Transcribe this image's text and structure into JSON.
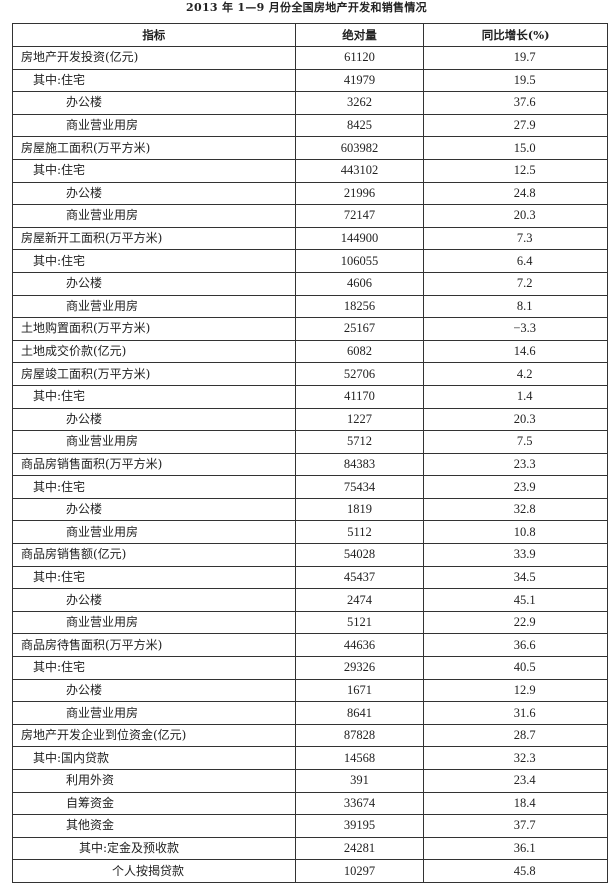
{
  "title": "2013 年 1—9 月份全国房地产开发和销售情况",
  "headers": [
    "指标",
    "绝对量",
    "同比增长(%)"
  ],
  "rows": [
    {
      "label": "房地产开发投资(亿元)",
      "level": 0,
      "value": "61120",
      "growth": "19.7"
    },
    {
      "label": "其中:住宅",
      "level": 1,
      "value": "41979",
      "growth": "19.5"
    },
    {
      "label": "办公楼",
      "level": 2,
      "value": "3262",
      "growth": "37.6"
    },
    {
      "label": "商业营业用房",
      "level": 2,
      "value": "8425",
      "growth": "27.9"
    },
    {
      "label": "房屋施工面积(万平方米)",
      "level": 0,
      "value": "603982",
      "growth": "15.0"
    },
    {
      "label": "其中:住宅",
      "level": 1,
      "value": "443102",
      "growth": "12.5"
    },
    {
      "label": "办公楼",
      "level": 2,
      "value": "21996",
      "growth": "24.8"
    },
    {
      "label": "商业营业用房",
      "level": 2,
      "value": "72147",
      "growth": "20.3"
    },
    {
      "label": "房屋新开工面积(万平方米)",
      "level": 0,
      "value": "144900",
      "growth": "7.3"
    },
    {
      "label": "其中:住宅",
      "level": 1,
      "value": "106055",
      "growth": "6.4"
    },
    {
      "label": "办公楼",
      "level": 2,
      "value": "4606",
      "growth": "7.2"
    },
    {
      "label": "商业营业用房",
      "level": 2,
      "value": "18256",
      "growth": "8.1"
    },
    {
      "label": "土地购置面积(万平方米)",
      "level": 0,
      "value": "25167",
      "growth": "−3.3"
    },
    {
      "label": "土地成交价款(亿元)",
      "level": 0,
      "value": "6082",
      "growth": "14.6"
    },
    {
      "label": "房屋竣工面积(万平方米)",
      "level": 0,
      "value": "52706",
      "growth": "4.2"
    },
    {
      "label": "其中:住宅",
      "level": 1,
      "value": "41170",
      "growth": "1.4"
    },
    {
      "label": "办公楼",
      "level": 2,
      "value": "1227",
      "growth": "20.3"
    },
    {
      "label": "商业营业用房",
      "level": 2,
      "value": "5712",
      "growth": "7.5"
    },
    {
      "label": "商品房销售面积(万平方米)",
      "level": 0,
      "value": "84383",
      "growth": "23.3"
    },
    {
      "label": "其中:住宅",
      "level": 1,
      "value": "75434",
      "growth": "23.9"
    },
    {
      "label": "办公楼",
      "level": 2,
      "value": "1819",
      "growth": "32.8"
    },
    {
      "label": "商业营业用房",
      "level": 2,
      "value": "5112",
      "growth": "10.8"
    },
    {
      "label": "商品房销售额(亿元)",
      "level": 0,
      "value": "54028",
      "growth": "33.9"
    },
    {
      "label": "其中:住宅",
      "level": 1,
      "value": "45437",
      "growth": "34.5"
    },
    {
      "label": "办公楼",
      "level": 2,
      "value": "2474",
      "growth": "45.1"
    },
    {
      "label": "商业营业用房",
      "level": 2,
      "value": "5121",
      "growth": "22.9"
    },
    {
      "label": "商品房待售面积(万平方米)",
      "level": 0,
      "value": "44636",
      "growth": "36.6"
    },
    {
      "label": "其中:住宅",
      "level": 1,
      "value": "29326",
      "growth": "40.5"
    },
    {
      "label": "办公楼",
      "level": 2,
      "value": "1671",
      "growth": "12.9"
    },
    {
      "label": "商业营业用房",
      "level": 2,
      "value": "8641",
      "growth": "31.6"
    },
    {
      "label": "房地产开发企业到位资金(亿元)",
      "level": 0,
      "value": "87828",
      "growth": "28.7"
    },
    {
      "label": "其中:国内贷款",
      "level": 1,
      "value": "14568",
      "growth": "32.3"
    },
    {
      "label": "利用外资",
      "level": 2,
      "value": "391",
      "growth": "23.4"
    },
    {
      "label": "自筹资金",
      "level": 2,
      "value": "33674",
      "growth": "18.4"
    },
    {
      "label": "其他资金",
      "level": 2,
      "value": "39195",
      "growth": "37.7"
    },
    {
      "label": "其中:定金及预收款",
      "level": 3,
      "value": "24281",
      "growth": "36.1"
    },
    {
      "label": "个人按揭贷款",
      "level": 4,
      "value": "10297",
      "growth": "45.8"
    }
  ]
}
